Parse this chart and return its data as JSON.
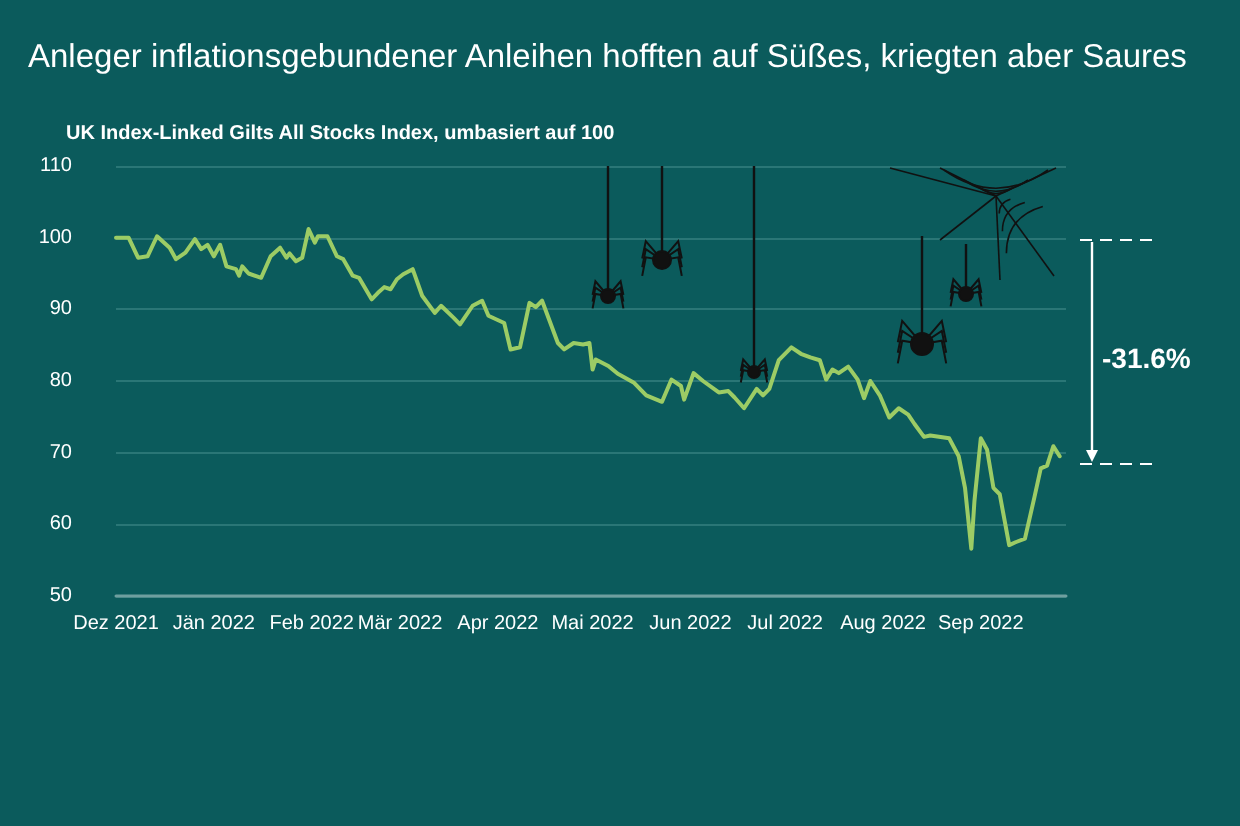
{
  "chart_data": {
    "type": "line",
    "title": "Anleger inflationsgebundener Anleihen hofften auf Süßes, kriegten aber Saures",
    "subtitle": "UK Index-Linked Gilts All Stocks Index, umbasiert auf 100",
    "annotations": [
      "-31.6%"
    ],
    "x": [
      "2021-12-01",
      "2021-12-05",
      "2021-12-08",
      "2021-12-11",
      "2021-12-14",
      "2021-12-18",
      "2021-12-20",
      "2021-12-23",
      "2021-12-26",
      "2021-12-28",
      "2021-12-30",
      "2022-01-01",
      "2022-01-03",
      "2022-01-05",
      "2022-01-08",
      "2022-01-09",
      "2022-01-10",
      "2022-01-12",
      "2022-01-16",
      "2022-01-19",
      "2022-01-22",
      "2022-01-24",
      "2022-01-25",
      "2022-01-27",
      "2022-01-29",
      "2022-01-31",
      "2022-02-02",
      "2022-02-03",
      "2022-02-06",
      "2022-02-09",
      "2022-02-11",
      "2022-02-14",
      "2022-02-16",
      "2022-02-20",
      "2022-02-22",
      "2022-02-24",
      "2022-02-26",
      "2022-02-28",
      "2022-03-02",
      "2022-03-05",
      "2022-03-08",
      "2022-03-12",
      "2022-03-14",
      "2022-03-18",
      "2022-03-20",
      "2022-03-24",
      "2022-03-27",
      "2022-03-29",
      "2022-04-03",
      "2022-04-05",
      "2022-04-08",
      "2022-04-11",
      "2022-04-13",
      "2022-04-15",
      "2022-04-20",
      "2022-04-22",
      "2022-04-25",
      "2022-04-28",
      "2022-04-30",
      "2022-05-01",
      "2022-05-02",
      "2022-05-06",
      "2022-05-09",
      "2022-05-14",
      "2022-05-18",
      "2022-05-23",
      "2022-05-26",
      "2022-05-29",
      "2022-05-30",
      "2022-06-02",
      "2022-06-05",
      "2022-06-10",
      "2022-06-13",
      "2022-06-15",
      "2022-06-18",
      "2022-06-22",
      "2022-06-24",
      "2022-06-26",
      "2022-06-29",
      "2022-07-03",
      "2022-07-06",
      "2022-07-09",
      "2022-07-12",
      "2022-07-14",
      "2022-07-16",
      "2022-07-18",
      "2022-07-21",
      "2022-07-24",
      "2022-07-26",
      "2022-07-28",
      "2022-07-31",
      "2022-08-03",
      "2022-08-06",
      "2022-08-09",
      "2022-08-11",
      "2022-08-14",
      "2022-08-16",
      "2022-08-22",
      "2022-08-25",
      "2022-08-27",
      "2022-08-29",
      "2022-08-30",
      "2022-09-01",
      "2022-09-03",
      "2022-09-05",
      "2022-09-07",
      "2022-09-10",
      "2022-09-12",
      "2022-09-15",
      "2022-09-18",
      "2022-09-20",
      "2022-09-22",
      "2022-09-24",
      "2022-09-26"
    ],
    "series": [
      {
        "color": "#9ccc65",
        "values": [
          100,
          100,
          97.2,
          97.4,
          100.2,
          98.6,
          97,
          97.9,
          99.8,
          98.4,
          99,
          97.4,
          99,
          96,
          95.6,
          94.7,
          96,
          95,
          94.4,
          97.4,
          98.6,
          97.2,
          97.8,
          96.7,
          97.2,
          101.2,
          99.3,
          100.2,
          100.2,
          97.4,
          97,
          94.7,
          94.4,
          91.4,
          92.3,
          93.1,
          92.8,
          94.2,
          94.9,
          95.6,
          91.9,
          89.5,
          90.5,
          88.8,
          87.9,
          90.5,
          91.2,
          89.1,
          88.1,
          84.4,
          84.7,
          90.9,
          90.3,
          91.2,
          85.3,
          84.4,
          85.3,
          85.1,
          85.3,
          81.6,
          83,
          82.1,
          81,
          79.8,
          78,
          77.1,
          80.2,
          79.3,
          77.4,
          81.1,
          80,
          78.4,
          78.6,
          77.7,
          76.2,
          78.9,
          78,
          78.9,
          82.9,
          84.7,
          83.8,
          83.3,
          82.9,
          80.2,
          81.6,
          81.1,
          82,
          80.2,
          77.6,
          80,
          78,
          74.9,
          76.2,
          75.3,
          74,
          72.2,
          72.4,
          72,
          69.5,
          65.1,
          56.6,
          63.3,
          72,
          70.4,
          65.1,
          64.2,
          57.1,
          57.5,
          58,
          63.8,
          67.8,
          68.2,
          70.9,
          69.5
        ]
      }
    ],
    "xlim": [
      "2021-12-01",
      "2022-09-28"
    ],
    "xticks": [
      {
        "value": "2021-12-01",
        "label": "Dez 2021"
      },
      {
        "value": "2022-01-01",
        "label": "Jän 2022"
      },
      {
        "value": "2022-02-01",
        "label": "Feb 2022"
      },
      {
        "value": "2022-03-01",
        "label": "Mär 2022"
      },
      {
        "value": "2022-04-01",
        "label": "Apr 2022"
      },
      {
        "value": "2022-05-01",
        "label": "Mai 2022"
      },
      {
        "value": "2022-06-01",
        "label": "Jun 2022"
      },
      {
        "value": "2022-07-01",
        "label": "Jul 2022"
      },
      {
        "value": "2022-08-01",
        "label": "Aug 2022"
      },
      {
        "value": "2022-09-01",
        "label": "Sep 2022"
      }
    ],
    "ylim": [
      50,
      110
    ],
    "yticks": [
      50,
      60,
      70,
      80,
      90,
      100,
      110
    ],
    "grid": "y",
    "marker": "none",
    "line_style": "solid"
  }
}
